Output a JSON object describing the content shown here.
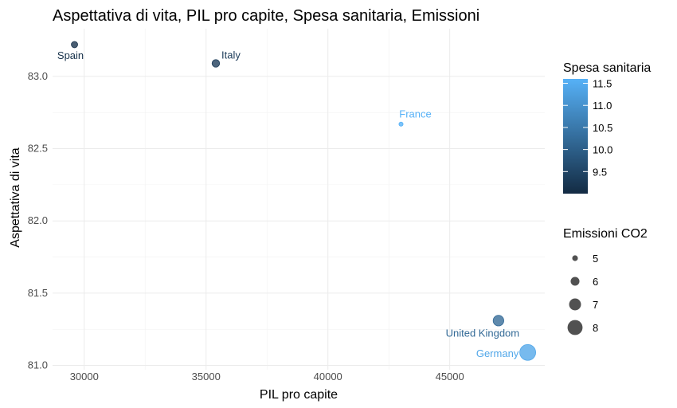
{
  "chart_data": {
    "type": "scatter",
    "title": "Aspettativa di vita, PIL pro capite, Spesa sanitaria, Emissioni",
    "xlabel": "PIL pro capite",
    "ylabel": "Aspettativa di vita",
    "xlim": [
      28700,
      48900
    ],
    "ylim": [
      80.97,
      83.33
    ],
    "x_ticks": [
      30000,
      35000,
      40000,
      45000
    ],
    "x_tick_labels": [
      "30000",
      "35000",
      "40000",
      "45000"
    ],
    "y_ticks": [
      81.0,
      81.5,
      82.0,
      82.5,
      83.0
    ],
    "y_tick_labels": [
      "81.0",
      "81.5",
      "82.0",
      "82.5",
      "83.0"
    ],
    "grid": true,
    "points": [
      {
        "label": "Spain",
        "x": 29600,
        "y": 83.22,
        "spesa": 9.1,
        "co2": 5.2
      },
      {
        "label": "Italy",
        "x": 35400,
        "y": 83.09,
        "spesa": 9.3,
        "co2": 5.6
      },
      {
        "label": "France",
        "x": 43000,
        "y": 82.67,
        "spesa": 11.6,
        "co2": 4.5
      },
      {
        "label": "United Kingdom",
        "x": 47000,
        "y": 81.31,
        "spesa": 10.2,
        "co2": 6.6
      },
      {
        "label": "Germany",
        "x": 48200,
        "y": 81.09,
        "spesa": 11.4,
        "co2": 8.3
      }
    ],
    "color_legend": {
      "title": "Spesa sanitaria",
      "range": [
        9.0,
        11.6
      ],
      "ticks": [
        "9.5",
        "10.0",
        "10.5",
        "11.0",
        "11.5"
      ],
      "tick_values": [
        9.5,
        10.0,
        10.5,
        11.0,
        11.5
      ],
      "low_color": "#132B43",
      "high_color": "#56B1F7"
    },
    "size_legend": {
      "title": "Emissioni CO2",
      "items": [
        {
          "label": "5",
          "value": 5
        },
        {
          "label": "6",
          "value": 6
        },
        {
          "label": "7",
          "value": 7
        },
        {
          "label": "8",
          "value": 8
        }
      ]
    },
    "legend_position": "right"
  }
}
